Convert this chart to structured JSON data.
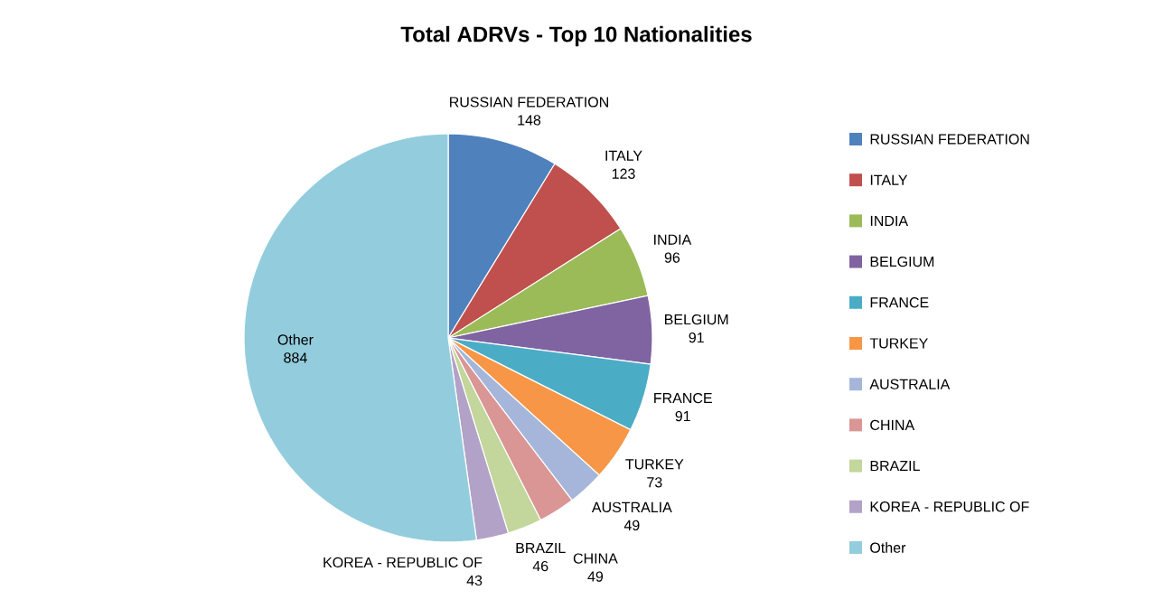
{
  "chart_data": {
    "type": "pie",
    "title": "Total ADRVs - Top 10 Nationalities",
    "categories": [
      "RUSSIAN FEDERATION",
      "ITALY",
      "INDIA",
      "BELGIUM",
      "FRANCE",
      "TURKEY",
      "AUSTRALIA",
      "CHINA",
      "BRAZIL",
      "KOREA - REPUBLIC OF",
      "Other"
    ],
    "values": [
      148,
      123,
      96,
      91,
      91,
      73,
      49,
      49,
      46,
      43,
      884
    ],
    "colors": [
      "#4f81bd",
      "#c0504d",
      "#9bbb59",
      "#8064a2",
      "#4bacc6",
      "#f79646",
      "#a5b6da",
      "#d99694",
      "#c3d69b",
      "#b3a2c7",
      "#93cddd"
    ],
    "data_labels": true,
    "legend": "right"
  }
}
